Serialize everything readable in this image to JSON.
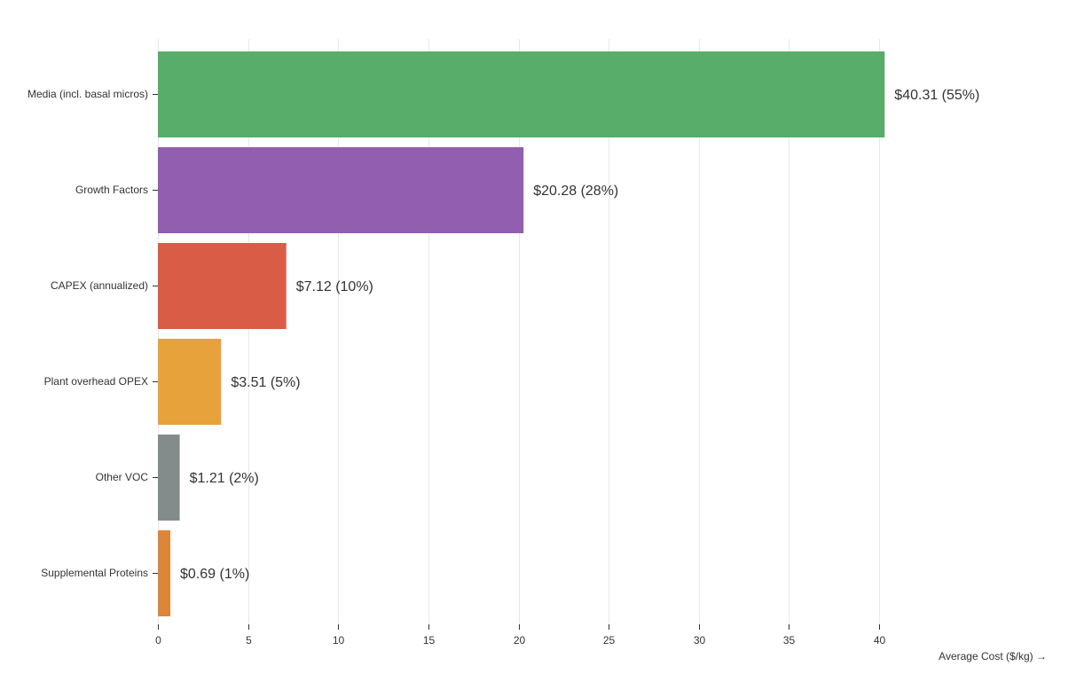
{
  "chart_data": {
    "type": "bar",
    "orientation": "horizontal",
    "categories": [
      "Media (incl. basal micros)",
      "Growth Factors",
      "CAPEX (annualized)",
      "Plant overhead OPEX",
      "Other VOC",
      "Supplemental Proteins"
    ],
    "values": [
      40.31,
      20.28,
      7.12,
      3.51,
      1.21,
      0.69
    ],
    "data_labels": [
      "$40.31 (55%)",
      "$20.28 (28%)",
      "$7.12 (10%)",
      "$3.51 (5%)",
      "$1.21 (2%)",
      "$0.69 (1%)"
    ],
    "colors": [
      "#58ad6a",
      "#925eb0",
      "#d95c47",
      "#e8a23b",
      "#848c8b",
      "#dd853a"
    ],
    "xlabel": "Average Cost ($/kg) →",
    "xlim": [
      0,
      40
    ],
    "xticks": [
      0,
      5,
      10,
      15,
      20,
      25,
      30,
      35,
      40
    ],
    "grid": true
  }
}
